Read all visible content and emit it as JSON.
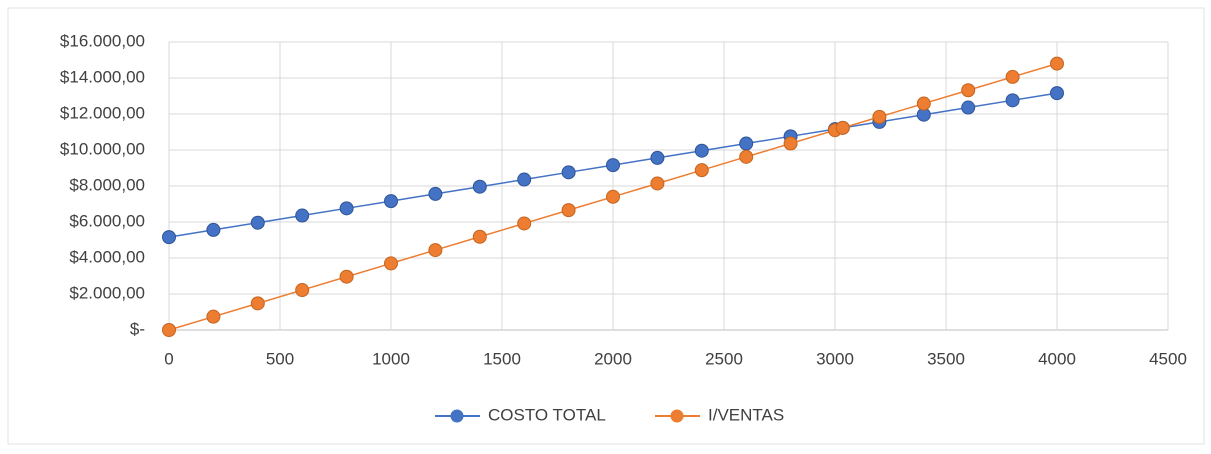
{
  "chart_data": {
    "type": "line",
    "x": [
      0,
      200,
      400,
      600,
      800,
      1000,
      1200,
      1400,
      1600,
      1800,
      2000,
      2200,
      2400,
      2600,
      2800,
      3000,
      3035,
      3200,
      3400,
      3600,
      3800,
      4000
    ],
    "series": [
      {
        "name": "COSTO TOTAL",
        "color": "#4472c4",
        "values": [
          5160,
          5560,
          5960,
          6360,
          6760,
          7160,
          7560,
          7960,
          8360,
          8760,
          9160,
          9560,
          9960,
          10360,
          10760,
          11160,
          11230,
          11560,
          11960,
          12360,
          12760,
          13160
        ]
      },
      {
        "name": "I/VENTAS",
        "color": "#ed7d31",
        "values": [
          0,
          740,
          1480,
          2220,
          2960,
          3700,
          4440,
          5180,
          5920,
          6660,
          7400,
          8140,
          8880,
          9620,
          10360,
          11100,
          11230,
          11840,
          12580,
          13320,
          14060,
          14800
        ]
      }
    ],
    "xlim": [
      0,
      4500
    ],
    "xticks": [
      0,
      500,
      1000,
      1500,
      2000,
      2500,
      3000,
      3500,
      4000,
      4500
    ],
    "ylim": [
      0,
      16000
    ],
    "yticks": [
      {
        "value": 0,
        "label": "$-"
      },
      {
        "value": 2000,
        "label": "$2.000,00"
      },
      {
        "value": 4000,
        "label": "$4.000,00"
      },
      {
        "value": 6000,
        "label": "$6.000,00"
      },
      {
        "value": 8000,
        "label": "$8.000,00"
      },
      {
        "value": 10000,
        "label": "$10.000,00"
      },
      {
        "value": 12000,
        "label": "$12.000,00"
      },
      {
        "value": 14000,
        "label": "$14.000,00"
      },
      {
        "value": 16000,
        "label": "$16.000,00"
      }
    ],
    "grid": true,
    "legend": "bottom"
  }
}
